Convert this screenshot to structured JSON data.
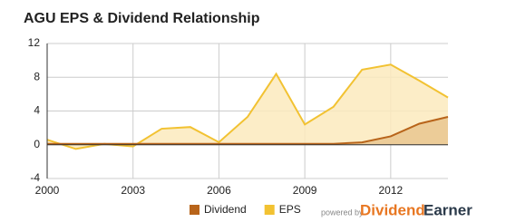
{
  "chart_data": {
    "type": "area",
    "title": "AGU EPS & Dividend Relationship",
    "x": [
      2000,
      2001,
      2002,
      2003,
      2004,
      2005,
      2006,
      2007,
      2008,
      2009,
      2010,
      2011,
      2012,
      2013,
      2014
    ],
    "series": [
      {
        "name": "Dividend",
        "color": "#b8641a",
        "fill": "#e9c58f",
        "values": [
          0.11,
          0.11,
          0.11,
          0.11,
          0.11,
          0.11,
          0.11,
          0.11,
          0.11,
          0.11,
          0.11,
          0.28,
          1.0,
          2.5,
          3.3
        ]
      },
      {
        "name": "EPS",
        "color": "#f2c232",
        "fill": "#fbeabd",
        "values": [
          0.6,
          -0.5,
          0.1,
          -0.2,
          1.9,
          2.1,
          0.3,
          3.3,
          8.4,
          2.4,
          4.5,
          8.9,
          9.5,
          7.6,
          5.6
        ]
      }
    ],
    "xlim": [
      2000,
      2014
    ],
    "xticks": [
      2000,
      2003,
      2006,
      2009,
      2012
    ],
    "ylim": [
      -4,
      12
    ],
    "yticks": [
      -4,
      0,
      4,
      8,
      12
    ],
    "grid": true,
    "legend": "bottom"
  },
  "branding": {
    "prefix": "powered by",
    "name1": "Dividend",
    "name2": "Earner"
  }
}
